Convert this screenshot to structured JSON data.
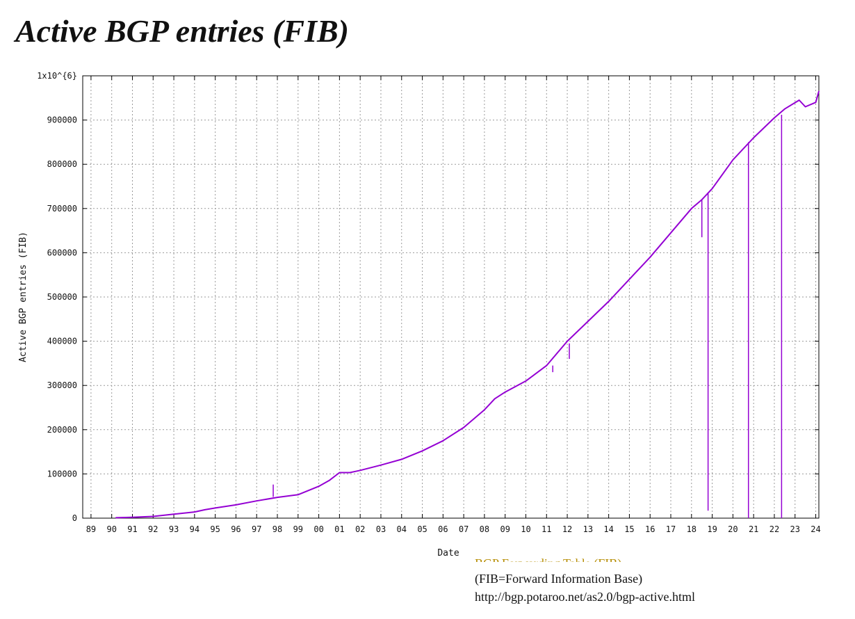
{
  "title": "Active BGP entries (FIB)",
  "footer": {
    "partial": "BGP Forwarding Table (FIB)",
    "line1": "(FIB=Forward Information Base)",
    "line2": "http://bgp.potaroo.net/as2.0/bgp-active.html"
  },
  "chart_data": {
    "type": "line",
    "title": "",
    "xlabel": "Date",
    "ylabel": "Active BGP entries (FIB)",
    "xlim": [
      1988.6,
      2024.15
    ],
    "ylim": [
      0,
      1000000
    ],
    "y_ticks": [
      0,
      100000,
      200000,
      300000,
      400000,
      500000,
      600000,
      700000,
      800000,
      900000,
      1000000
    ],
    "y_tick_labels": [
      "0",
      "100000",
      "200000",
      "300000",
      "400000",
      "500000",
      "600000",
      "700000",
      "800000",
      "900000",
      "1x10^{6}"
    ],
    "x_ticks": [
      1989,
      1990,
      1991,
      1992,
      1993,
      1994,
      1995,
      1996,
      1997,
      1998,
      1999,
      2000,
      2001,
      2002,
      2003,
      2004,
      2005,
      2006,
      2007,
      2008,
      2009,
      2010,
      2011,
      2012,
      2013,
      2014,
      2015,
      2016,
      2017,
      2018,
      2019,
      2020,
      2021,
      2022,
      2023,
      2024
    ],
    "x_tick_labels": [
      "89",
      "90",
      "91",
      "92",
      "93",
      "94",
      "95",
      "96",
      "97",
      "98",
      "99",
      "00",
      "01",
      "02",
      "03",
      "04",
      "05",
      "06",
      "07",
      "08",
      "09",
      "10",
      "11",
      "12",
      "13",
      "14",
      "15",
      "16",
      "17",
      "18",
      "19",
      "20",
      "21",
      "22",
      "23",
      "24"
    ],
    "grid": true,
    "line_color": "#9400d3",
    "series": [
      {
        "x": [
          1990.2,
          1991.0,
          1992.0,
          1993.0,
          1994.0,
          1994.5,
          1995.0,
          1996.0,
          1997.0,
          1998.0,
          1999.0,
          2000.0,
          2000.5,
          2001.0,
          2001.5,
          2002.0,
          2003.0,
          2004.0,
          2005.0,
          2006.0,
          2007.0,
          2008.0,
          2008.5,
          2009.0,
          2010.0,
          2011.0,
          2012.0,
          2013.0,
          2014.0,
          2015.0,
          2016.0,
          2017.0,
          2018.0,
          2018.5,
          2019.0,
          2020.0,
          2021.0,
          2022.0,
          2022.5,
          2023.2,
          2023.5,
          2024.0,
          2024.15
        ],
        "y": [
          1000,
          2000,
          4000,
          9000,
          14000,
          19000,
          23000,
          30000,
          39000,
          47000,
          53000,
          72000,
          85000,
          103000,
          103000,
          108000,
          120000,
          133000,
          152000,
          175000,
          205000,
          245000,
          270000,
          285000,
          310000,
          345000,
          400000,
          445000,
          490000,
          540000,
          590000,
          645000,
          700000,
          720000,
          745000,
          810000,
          860000,
          905000,
          925000,
          945000,
          930000,
          940000,
          965000
        ]
      }
    ],
    "drops": [
      {
        "x": 2018.5,
        "y_from": 720000,
        "y_to": 635000
      },
      {
        "x": 2018.8,
        "y_from": 735000,
        "y_to": 17000
      },
      {
        "x": 2020.75,
        "y_from": 850000,
        "y_to": 0
      },
      {
        "x": 2022.35,
        "y_from": 912000,
        "y_to": 0
      },
      {
        "x": 2011.3,
        "y_from": 345000,
        "y_to": 330000
      },
      {
        "x": 2012.1,
        "y_from": 395000,
        "y_to": 360000
      },
      {
        "x": 1997.8,
        "y_from": 48000,
        "y_to": 76000
      }
    ]
  }
}
